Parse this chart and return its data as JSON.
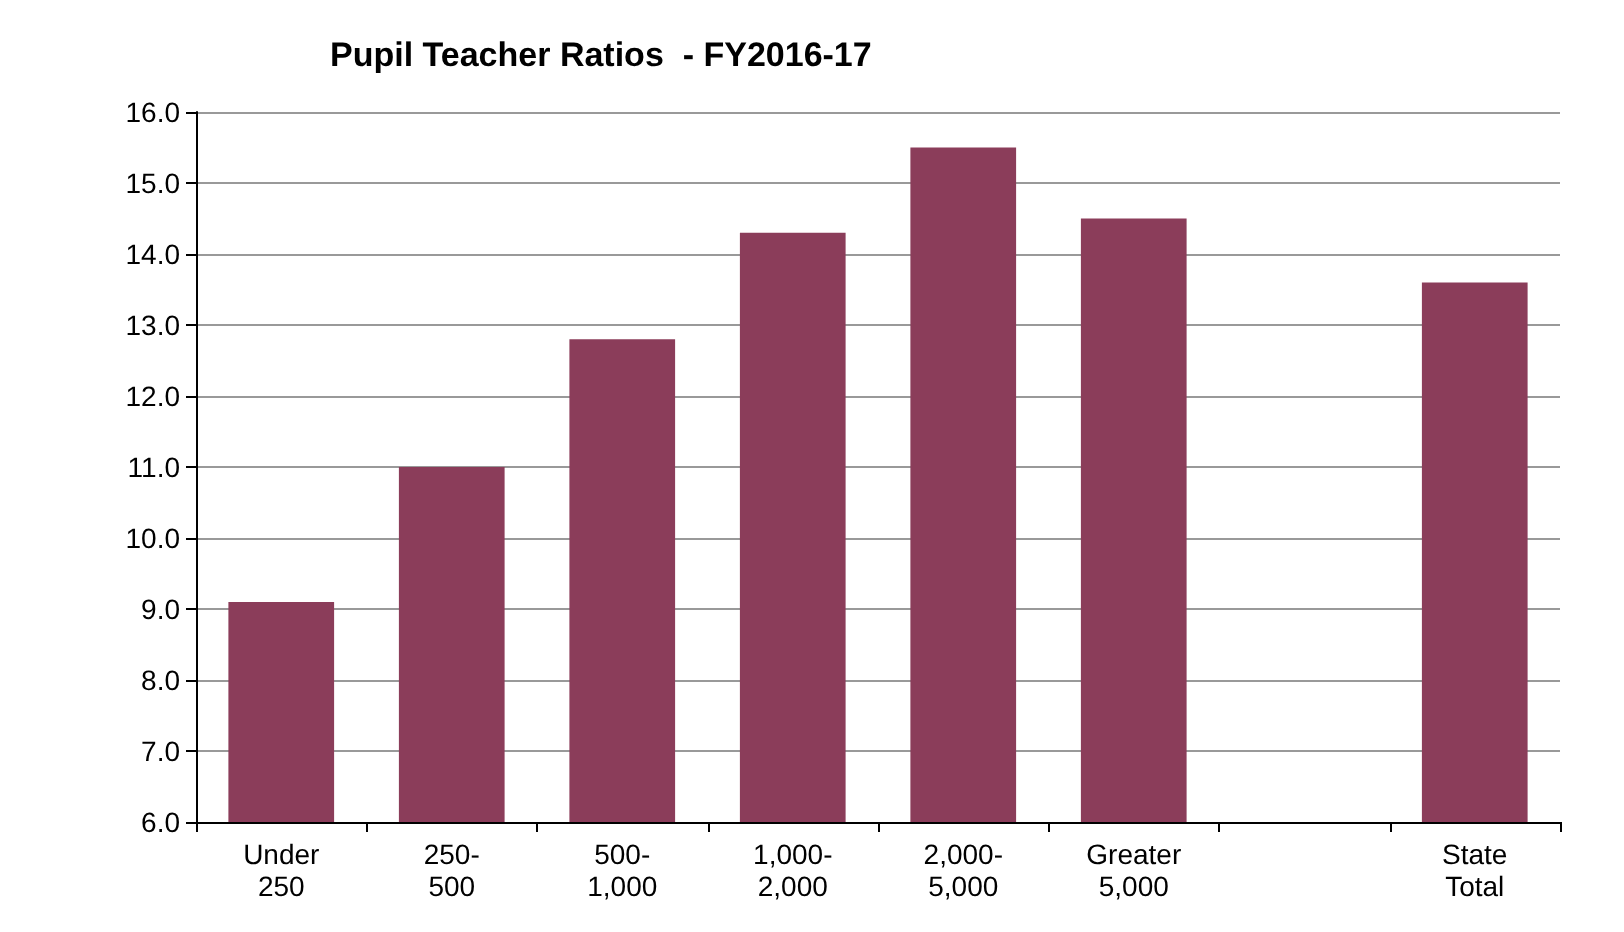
{
  "chart_data": {
    "type": "bar",
    "title": "Pupil Teacher Ratios  - FY2016-17",
    "categories": [
      "Under\n250",
      "250-\n500",
      "500-\n1,000",
      "1,000-\n2,000",
      "2,000-\n5,000",
      "Greater\n5,000",
      null,
      "State\nTotal"
    ],
    "values": [
      9.1,
      11.0,
      12.8,
      14.3,
      15.5,
      14.5,
      null,
      13.6
    ],
    "color": "#8b3d5a",
    "ylim": [
      6,
      16
    ],
    "yticks": [
      {
        "value": 6,
        "label": "6.0"
      },
      {
        "value": 7,
        "label": "7.0"
      },
      {
        "value": 8,
        "label": "8.0"
      },
      {
        "value": 9,
        "label": "9.0"
      },
      {
        "value": 10,
        "label": "10.0"
      },
      {
        "value": 11,
        "label": "11.0"
      },
      {
        "value": 12,
        "label": "12.0"
      },
      {
        "value": 13,
        "label": "13.0"
      },
      {
        "value": 14,
        "label": "14.0"
      },
      {
        "value": 15,
        "label": "15.0"
      },
      {
        "value": 16,
        "label": "16.0"
      }
    ],
    "grid": "y"
  }
}
